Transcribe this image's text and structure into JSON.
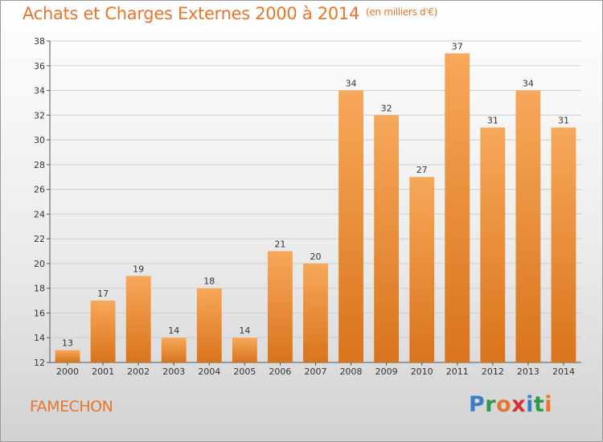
{
  "title": "Achats et Charges Externes 2000 à 2014",
  "unit": "(en milliers d'€)",
  "town": "FAMECHON",
  "logo": {
    "text": "Proxiti",
    "letters": [
      {
        "ch": "P",
        "color": "#3d7cc9"
      },
      {
        "ch": "r",
        "color": "#2d9b4a"
      },
      {
        "ch": "o",
        "color": "#e8752b"
      },
      {
        "ch": "x",
        "color": "#d62f2f"
      },
      {
        "ch": "i",
        "color": "#3d7cc9"
      },
      {
        "ch": "t",
        "color": "#2d9b4a"
      },
      {
        "ch": "i",
        "color": "#e8752b"
      }
    ]
  },
  "colors": {
    "bar_light": "#f7a85a",
    "bar_dark": "#d9741c",
    "accent": "#e8752b"
  },
  "chart_data": {
    "type": "bar",
    "categories": [
      "2000",
      "2001",
      "2002",
      "2003",
      "2004",
      "2005",
      "2006",
      "2007",
      "2008",
      "2009",
      "2010",
      "2011",
      "2012",
      "2013",
      "2014"
    ],
    "values": [
      13,
      17,
      19,
      14,
      18,
      14,
      21,
      20,
      34,
      32,
      27,
      37,
      31,
      34,
      31
    ],
    "ylim": [
      12,
      38
    ],
    "yticks": [
      12,
      14,
      16,
      18,
      20,
      22,
      24,
      26,
      28,
      30,
      32,
      34,
      36,
      38
    ],
    "grid": true,
    "data_labels": true
  }
}
